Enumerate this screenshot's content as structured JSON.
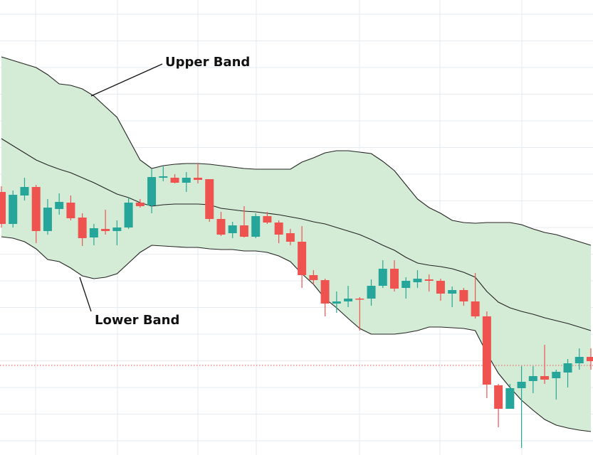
{
  "chart_data": {
    "type": "candlestick",
    "ylim": [
      0,
      640
    ],
    "up_color": "#26a69a",
    "down_color": "#ef5350",
    "open": [
      370,
      325,
      365,
      377,
      315,
      346,
      355,
      334,
      306,
      318,
      315,
      320,
      355,
      351,
      390,
      390,
      383,
      390,
      388,
      332,
      312,
      323,
      307,
      336,
      327,
      312,
      300,
      253,
      246,
      213,
      216,
      220,
      220,
      238,
      262,
      235,
      243,
      247,
      245,
      227,
      232,
      216,
      195,
      98,
      65,
      94,
      104,
      111,
      108,
      116,
      129,
      138
    ],
    "high": [
      378,
      372,
      390,
      380,
      360,
      368,
      365,
      340,
      325,
      345,
      330,
      362,
      360,
      402,
      406,
      395,
      398,
      410,
      388,
      342,
      328,
      350,
      340,
      342,
      330,
      318,
      322,
      260,
      248,
      230,
      238,
      222,
      247,
      274,
      274,
      250,
      260,
      254,
      248,
      237,
      235,
      256,
      202,
      100,
      100,
      125,
      125,
      155,
      120,
      135,
      150,
      150
    ],
    "low": [
      320,
      320,
      358,
      298,
      310,
      338,
      330,
      294,
      295,
      310,
      295,
      318,
      348,
      340,
      385,
      382,
      370,
      382,
      328,
      308,
      305,
      306,
      305,
      325,
      298,
      295,
      235,
      240,
      195,
      200,
      208,
      175,
      210,
      235,
      230,
      220,
      235,
      230,
      217,
      208,
      210,
      192,
      80,
      39,
      65,
      10,
      87,
      100,
      78,
      95,
      120,
      120
    ],
    "close": [
      325,
      366,
      377,
      315,
      348,
      356,
      333,
      305,
      319,
      315,
      320,
      355,
      350,
      391,
      392,
      383,
      390,
      387,
      332,
      310,
      323,
      307,
      336,
      327,
      310,
      300,
      253,
      246,
      213,
      216,
      220,
      219,
      238,
      262,
      234,
      245,
      248,
      245,
      227,
      232,
      216,
      195,
      99,
      65,
      94,
      103,
      111,
      106,
      117,
      129,
      138,
      132
    ],
    "bands": {
      "color": "#222222",
      "fill": "#d4ecd5",
      "upper": [
        560,
        555,
        550,
        545,
        535,
        522,
        520,
        515,
        505,
        490,
        475,
        445,
        415,
        403,
        407,
        409,
        410,
        410,
        409,
        407,
        405,
        403,
        402,
        402,
        402,
        402,
        412,
        418,
        425,
        428,
        428,
        426,
        424,
        413,
        400,
        380,
        360,
        348,
        340,
        330,
        327,
        326,
        327,
        327,
        327,
        324,
        318,
        313,
        310,
        305,
        300,
        295
      ],
      "middle": [
        445,
        435,
        425,
        415,
        408,
        402,
        397,
        390,
        383,
        375,
        367,
        362,
        355,
        350,
        352,
        353,
        353,
        353,
        352,
        347,
        345,
        343,
        342,
        340,
        338,
        335,
        332,
        328,
        325,
        320,
        315,
        310,
        303,
        295,
        288,
        278,
        270,
        267,
        265,
        262,
        257,
        250,
        230,
        215,
        207,
        202,
        198,
        193,
        189,
        185,
        180,
        175
      ],
      "lower": [
        307,
        305,
        300,
        290,
        275,
        272,
        263,
        252,
        248,
        250,
        255,
        270,
        285,
        295,
        294,
        293,
        292,
        292,
        290,
        289,
        289,
        287,
        287,
        285,
        280,
        272,
        255,
        240,
        220,
        207,
        192,
        178,
        170,
        170,
        170,
        172,
        175,
        180,
        180,
        179,
        178,
        175,
        143,
        115,
        95,
        77,
        63,
        50,
        42,
        38,
        35,
        33
      ]
    },
    "price_line": {
      "value": 126,
      "color": "#ef5350"
    },
    "grid": true,
    "annotations": [
      "Upper Band",
      "Lower Band"
    ]
  }
}
